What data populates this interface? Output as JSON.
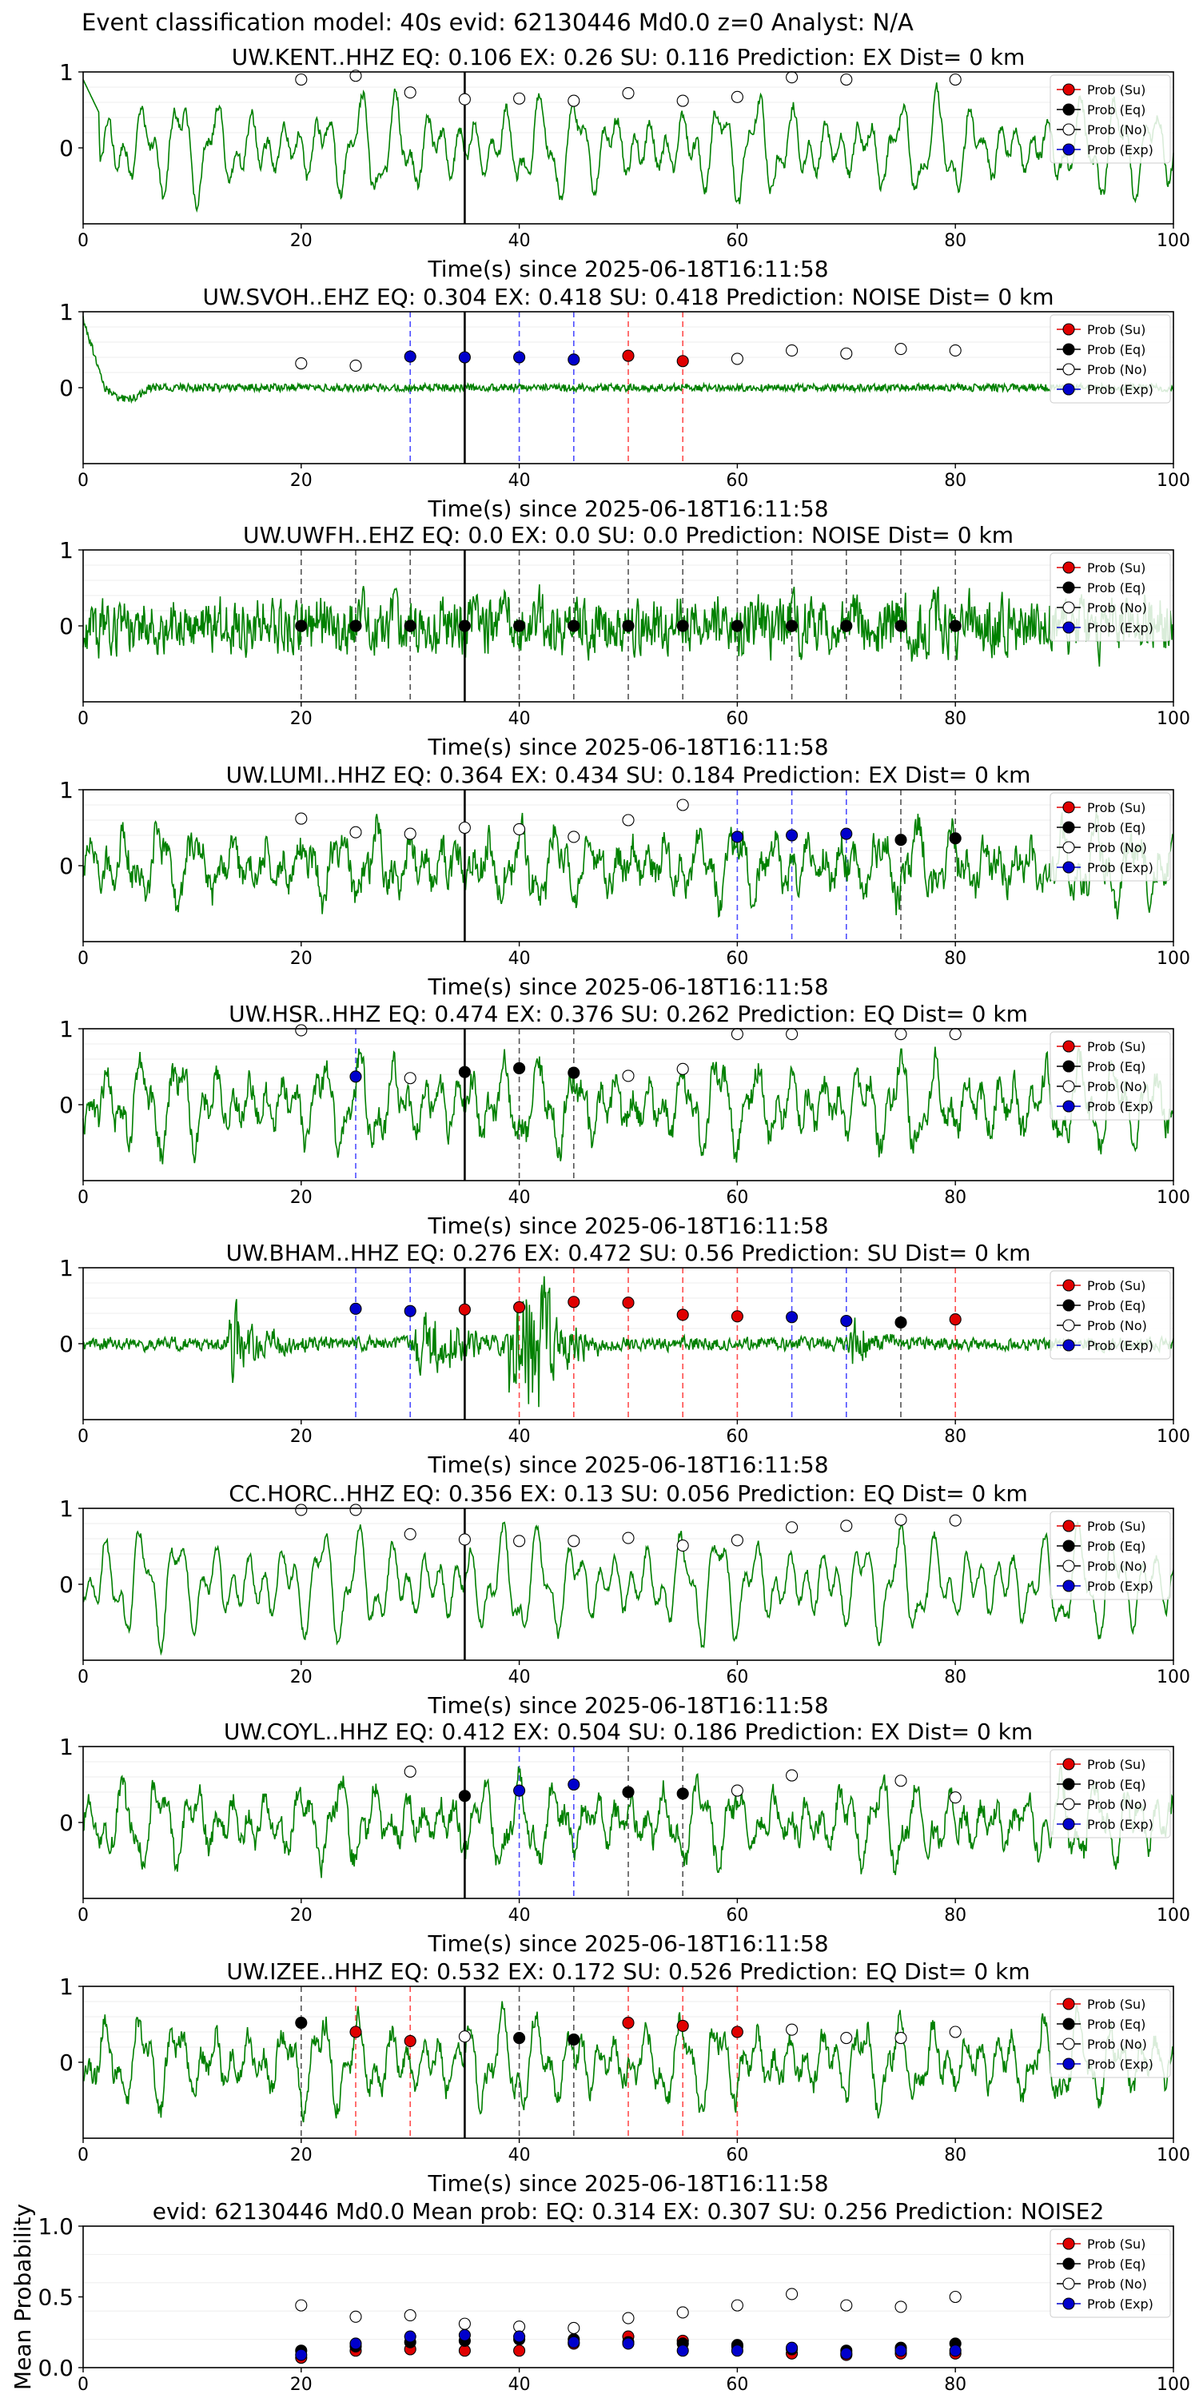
{
  "suptitle": "Event classification model: 40s evid: 62130446 Md0.0 z=0 Analyst: N/A",
  "xlabel": "Time(s) since 2025-06-18T16:11:58",
  "legend": [
    "Prob (Su)",
    "Prob (Eq)",
    "Prob (No)",
    "Prob (Exp)"
  ],
  "colors": {
    "su": "#e00000",
    "eq": "#000000",
    "no": "#ffffff",
    "exp": "#0000cc",
    "trace": "#008000",
    "su_line": "#ff4d4d",
    "eq_line": "#555555",
    "exp_line": "#4d4dff"
  },
  "chart_data": [
    {
      "type": "line",
      "title": "UW.KENT..HHZ   EQ: 0.106  EX: 0.26  SU: 0.116   Prediction: EX    Dist= 0 km",
      "xlim": [
        0,
        100
      ],
      "ylim": [
        -1,
        1
      ],
      "xticks": [
        0,
        20,
        40,
        60,
        80,
        100
      ],
      "yticks": [
        "1",
        "0"
      ],
      "style": 0,
      "noise": 0.12,
      "osc": 0.55,
      "events": [],
      "no": [
        [
          20,
          0.9
        ],
        [
          25,
          0.95
        ],
        [
          30,
          0.73
        ],
        [
          35,
          0.64
        ],
        [
          40,
          0.65
        ],
        [
          45,
          0.62
        ],
        [
          50,
          0.72
        ],
        [
          55,
          0.62
        ],
        [
          60,
          0.67
        ],
        [
          65,
          0.93
        ],
        [
          70,
          0.9
        ],
        [
          80,
          0.9
        ]
      ],
      "su": [],
      "eq": [],
      "exp": []
    },
    {
      "type": "line",
      "title": "UW.SVOH..EHZ   EQ: 0.304  EX: 0.418  SU: 0.418   Prediction: NOISE    Dist= 0 km",
      "xlim": [
        0,
        100
      ],
      "ylim": [
        -1,
        1
      ],
      "xticks": [
        0,
        20,
        40,
        60,
        80,
        100
      ],
      "yticks": [
        "1",
        "0"
      ],
      "style": 1,
      "noise": 0.05,
      "osc": 0.0,
      "events": [],
      "no": [
        [
          20,
          0.32
        ],
        [
          25,
          0.29
        ],
        [
          60,
          0.38
        ],
        [
          65,
          0.49
        ],
        [
          70,
          0.45
        ],
        [
          75,
          0.51
        ],
        [
          80,
          0.49
        ]
      ],
      "su": [
        [
          50,
          0.42
        ],
        [
          55,
          0.35
        ]
      ],
      "eq": [],
      "exp": [
        [
          30,
          0.41
        ],
        [
          35,
          0.4
        ],
        [
          40,
          0.4
        ],
        [
          45,
          0.37
        ]
      ]
    },
    {
      "type": "line",
      "title": "UW.UWFH..EHZ   EQ: 0.0  EX: 0.0  SU: 0.0   Prediction: NOISE    Dist= 0 km",
      "xlim": [
        0,
        100
      ],
      "ylim": [
        -1,
        1
      ],
      "xticks": [
        0,
        20,
        40,
        60,
        80,
        100
      ],
      "yticks": [
        "1",
        "0"
      ],
      "style": 2,
      "noise": 0.5,
      "osc": 0.1,
      "events": [],
      "no": [],
      "su": [],
      "eq": [
        [
          20,
          0
        ],
        [
          25,
          0
        ],
        [
          30,
          0
        ],
        [
          35,
          0
        ],
        [
          40,
          0
        ],
        [
          45,
          0
        ],
        [
          50,
          0
        ],
        [
          55,
          0
        ],
        [
          60,
          0
        ],
        [
          65,
          0
        ],
        [
          70,
          0
        ],
        [
          75,
          0
        ],
        [
          80,
          0
        ]
      ],
      "exp": []
    },
    {
      "type": "line",
      "title": "UW.LUMI..HHZ   EQ: 0.364  EX: 0.434  SU: 0.184   Prediction: EX    Dist= 0 km",
      "xlim": [
        0,
        100
      ],
      "ylim": [
        -1,
        1
      ],
      "xticks": [
        0,
        20,
        40,
        60,
        80,
        100
      ],
      "yticks": [
        "1",
        "0"
      ],
      "style": 3,
      "noise": 0.3,
      "osc": 0.4,
      "events": [],
      "no": [
        [
          20,
          0.62
        ],
        [
          25,
          0.44
        ],
        [
          30,
          0.42
        ],
        [
          35,
          0.5
        ],
        [
          40,
          0.48
        ],
        [
          45,
          0.38
        ],
        [
          50,
          0.6
        ],
        [
          55,
          0.8
        ]
      ],
      "su": [],
      "eq": [
        [
          75,
          0.34
        ],
        [
          80,
          0.36
        ]
      ],
      "exp": [
        [
          60,
          0.38
        ],
        [
          65,
          0.4
        ],
        [
          70,
          0.42
        ]
      ]
    },
    {
      "type": "line",
      "title": "UW.HSR..HHZ   EQ: 0.474  EX: 0.376  SU: 0.262   Prediction: EQ    Dist= 0 km",
      "xlim": [
        0,
        100
      ],
      "ylim": [
        -1,
        1
      ],
      "xticks": [
        0,
        20,
        40,
        60,
        80,
        100
      ],
      "yticks": [
        "1",
        "0"
      ],
      "style": 4,
      "noise": 0.25,
      "osc": 0.5,
      "events": [],
      "no": [
        [
          20,
          0.98
        ],
        [
          30,
          0.35
        ],
        [
          50,
          0.38
        ],
        [
          55,
          0.47
        ],
        [
          60,
          0.93
        ],
        [
          65,
          0.93
        ],
        [
          75,
          0.93
        ],
        [
          80,
          0.93
        ]
      ],
      "su": [],
      "eq": [
        [
          35,
          0.43
        ],
        [
          40,
          0.48
        ],
        [
          45,
          0.42
        ]
      ],
      "exp": [
        [
          25,
          0.37
        ]
      ]
    },
    {
      "type": "line",
      "title": "UW.BHAM..HHZ   EQ: 0.276  EX: 0.472  SU: 0.56   Prediction: SU    Dist= 0 km",
      "xlim": [
        0,
        100
      ],
      "ylim": [
        -1,
        1
      ],
      "xticks": [
        0,
        20,
        40,
        60,
        80,
        100
      ],
      "yticks": [
        "1",
        "0"
      ],
      "style": 5,
      "noise": 0.12,
      "osc": 0.0,
      "events": [
        [
          13,
          0.55,
          3
        ],
        [
          30,
          0.5,
          5
        ],
        [
          40,
          1.0,
          3
        ],
        [
          70,
          0.4,
          2
        ]
      ],
      "no": [],
      "su": [
        [
          35,
          0.45
        ],
        [
          40,
          0.48
        ],
        [
          45,
          0.55
        ],
        [
          50,
          0.54
        ],
        [
          55,
          0.38
        ],
        [
          60,
          0.36
        ],
        [
          80,
          0.32
        ]
      ],
      "eq": [
        [
          75,
          0.28
        ]
      ],
      "exp": [
        [
          25,
          0.46
        ],
        [
          30,
          0.43
        ],
        [
          65,
          0.35
        ],
        [
          70,
          0.3
        ]
      ]
    },
    {
      "type": "line",
      "title": "CC.HORC..HHZ   EQ: 0.356  EX: 0.13  SU: 0.056   Prediction: EQ    Dist= 0 km",
      "xlim": [
        0,
        100
      ],
      "ylim": [
        -1,
        1
      ],
      "xticks": [
        0,
        20,
        40,
        60,
        80,
        100
      ],
      "yticks": [
        "1",
        "0"
      ],
      "style": 6,
      "noise": 0.1,
      "osc": 0.6,
      "events": [],
      "no": [
        [
          20,
          0.98
        ],
        [
          25,
          0.98
        ],
        [
          30,
          0.66
        ],
        [
          35,
          0.59
        ],
        [
          40,
          0.57
        ],
        [
          45,
          0.57
        ],
        [
          50,
          0.61
        ],
        [
          55,
          0.51
        ],
        [
          60,
          0.58
        ],
        [
          65,
          0.75
        ],
        [
          70,
          0.77
        ],
        [
          75,
          0.85
        ],
        [
          80,
          0.84
        ]
      ],
      "su": [],
      "eq": [],
      "exp": []
    },
    {
      "type": "line",
      "title": "UW.COYL..HHZ   EQ: 0.412  EX: 0.504  SU: 0.186   Prediction: EX    Dist= 0 km",
      "xlim": [
        0,
        100
      ],
      "ylim": [
        -1,
        1
      ],
      "xticks": [
        0,
        20,
        40,
        60,
        80,
        100
      ],
      "yticks": [
        "1",
        "0"
      ],
      "style": 7,
      "noise": 0.22,
      "osc": 0.45,
      "events": [],
      "no": [
        [
          30,
          0.67
        ],
        [
          60,
          0.42
        ],
        [
          65,
          0.62
        ],
        [
          75,
          0.55
        ],
        [
          80,
          0.33
        ]
      ],
      "su": [],
      "eq": [
        [
          35,
          0.35
        ],
        [
          50,
          0.4
        ],
        [
          55,
          0.38
        ]
      ],
      "exp": [
        [
          40,
          0.42
        ],
        [
          45,
          0.5
        ]
      ]
    },
    {
      "type": "line",
      "title": "UW.IZEE..HHZ   EQ: 0.532  EX: 0.172  SU: 0.526   Prediction: EQ    Dist= 0 km",
      "xlim": [
        0,
        100
      ],
      "ylim": [
        -1,
        1
      ],
      "xticks": [
        0,
        20,
        40,
        60,
        80,
        100
      ],
      "yticks": [
        "1",
        "0"
      ],
      "style": 8,
      "noise": 0.2,
      "osc": 0.5,
      "events": [],
      "no": [
        [
          35,
          0.34
        ],
        [
          65,
          0.43
        ],
        [
          70,
          0.32
        ],
        [
          75,
          0.32
        ],
        [
          80,
          0.4
        ]
      ],
      "su": [
        [
          25,
          0.4
        ],
        [
          30,
          0.28
        ],
        [
          50,
          0.52
        ],
        [
          55,
          0.48
        ],
        [
          60,
          0.4
        ]
      ],
      "eq": [
        [
          20,
          0.52
        ],
        [
          40,
          0.32
        ],
        [
          45,
          0.3
        ]
      ],
      "exp": []
    },
    {
      "type": "scatter",
      "title": "evid: 62130446  Md0.0   Mean prob:    EQ: 0.314  EX: 0.307  SU: 0.256   Prediction: NOISE2",
      "xlim": [
        0,
        100
      ],
      "ylim": [
        0,
        1
      ],
      "xticks": [
        0,
        20,
        40,
        60,
        80,
        100
      ],
      "yticks": [
        "1.0",
        "0.5",
        "0.0"
      ],
      "ylabel": "Mean Probability",
      "x": [
        20,
        25,
        30,
        35,
        40,
        45,
        50,
        55,
        60,
        65,
        70,
        75,
        80
      ],
      "no": [
        0.44,
        0.36,
        0.37,
        0.31,
        0.29,
        0.28,
        0.35,
        0.39,
        0.44,
        0.52,
        0.44,
        0.43,
        0.5
      ],
      "su": [
        0.07,
        0.12,
        0.13,
        0.12,
        0.12,
        0.17,
        0.22,
        0.19,
        0.15,
        0.1,
        0.09,
        0.1,
        0.1
      ],
      "eq": [
        0.12,
        0.15,
        0.18,
        0.19,
        0.2,
        0.2,
        0.18,
        0.17,
        0.16,
        0.13,
        0.12,
        0.14,
        0.17
      ],
      "exp": [
        0.09,
        0.17,
        0.22,
        0.23,
        0.22,
        0.18,
        0.17,
        0.12,
        0.12,
        0.14,
        0.1,
        0.12,
        0.12
      ]
    }
  ]
}
